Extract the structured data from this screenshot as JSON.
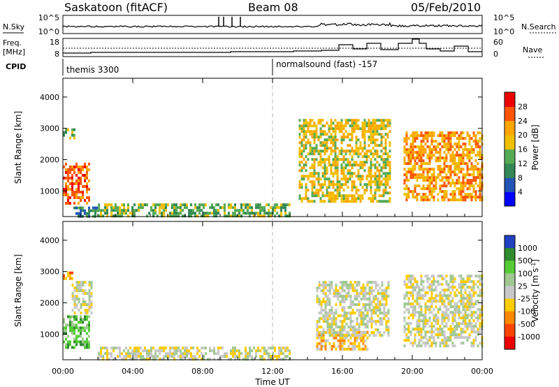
{
  "header": {
    "station": "Saskatoon (fitACF)",
    "beam": "Beam 08",
    "date": "05/Feb/2010"
  },
  "noise_panel": {
    "left_label": "N.Sky",
    "left_ticks": [
      "10^5",
      "10^0"
    ],
    "right_ticks": [
      "10^5",
      "10^0"
    ],
    "right_label": "N.Search"
  },
  "freq_panel": {
    "left_label_1": "Freq.",
    "left_label_2": "[MHz]",
    "left_ticks": [
      "18",
      "8"
    ],
    "right_ticks": [
      "60",
      "0"
    ],
    "right_label": "Nave"
  },
  "cpid": {
    "label": "CPID",
    "program_1": "themis 3300",
    "program_2": "normalsound (fast) -157"
  },
  "chart_data": [
    {
      "type": "heatmap",
      "title": "",
      "xlabel": "Time UT",
      "ylabel": "Slant Range [km]",
      "x_ticks": [
        "00:00",
        "04:00",
        "08:00",
        "12:00",
        "16:00",
        "20:00",
        "00:00"
      ],
      "y_ticks": [
        "1000",
        "2000",
        "3000",
        "4000"
      ],
      "ylim": [
        180,
        4600
      ],
      "colorbar": {
        "label": "Power [dB]",
        "ticks": [
          "4",
          "8",
          "12",
          "16",
          "20",
          "24",
          "28"
        ],
        "colors": [
          "#0000ff",
          "#2255b5",
          "#338855",
          "#55aa55",
          "#f0c000",
          "#ffa500",
          "#ff5500",
          "#ee0000"
        ]
      },
      "echo_regions": [
        {
          "t": [
            0.0,
            1.5
          ],
          "range": [
            600,
            1900
          ],
          "power_db": 24
        },
        {
          "t": [
            0.0,
            0.7
          ],
          "range": [
            2700,
            3000
          ],
          "power_db": 12
        },
        {
          "t": [
            0.6,
            2.0
          ],
          "range": [
            180,
            500
          ],
          "power_db": 8
        },
        {
          "t": [
            2.0,
            13.0
          ],
          "range": [
            180,
            600
          ],
          "power_db": 12
        },
        {
          "t": [
            13.5,
            18.7
          ],
          "range": [
            700,
            3300
          ],
          "power_db": 16
        },
        {
          "t": [
            19.5,
            24.0
          ],
          "range": [
            700,
            2900
          ],
          "power_db": 20
        }
      ]
    },
    {
      "type": "heatmap",
      "title": "",
      "xlabel": "Time UT",
      "ylabel": "Slant Range [km]",
      "x_ticks": [
        "00:00",
        "04:00",
        "08:00",
        "12:00",
        "16:00",
        "20:00",
        "00:00"
      ],
      "y_ticks": [
        "1000",
        "2000",
        "3000",
        "4000"
      ],
      "ylim": [
        180,
        4600
      ],
      "colorbar": {
        "label": "Velocity [m s^-1]",
        "ticks": [
          "1000",
          "500",
          "100",
          "25",
          "-25",
          "-100",
          "-500",
          "-1000"
        ],
        "colors": [
          "#2040c0",
          "#2e8b2e",
          "#55cc33",
          "#a0c890",
          "#c8c8c8",
          "#ffcc00",
          "#ff8800",
          "#ff4400",
          "#ee0000"
        ]
      },
      "echo_regions": [
        {
          "t": [
            0.0,
            1.5
          ],
          "range": [
            600,
            1600
          ],
          "velocity": 100
        },
        {
          "t": [
            0.0,
            0.6
          ],
          "range": [
            2800,
            3000
          ],
          "velocity": -500
        },
        {
          "t": [
            0.5,
            1.6
          ],
          "range": [
            1700,
            2700
          ],
          "velocity": 0
        },
        {
          "t": [
            2.0,
            13.0
          ],
          "range": [
            180,
            600
          ],
          "velocity": -25
        },
        {
          "t": [
            14.5,
            17.5
          ],
          "range": [
            500,
            1100
          ],
          "velocity": -100
        },
        {
          "t": [
            14.5,
            18.7
          ],
          "range": [
            1000,
            2700
          ],
          "velocity": 0
        },
        {
          "t": [
            19.5,
            24.0
          ],
          "range": [
            600,
            2900
          ],
          "velocity": 0
        }
      ]
    }
  ]
}
